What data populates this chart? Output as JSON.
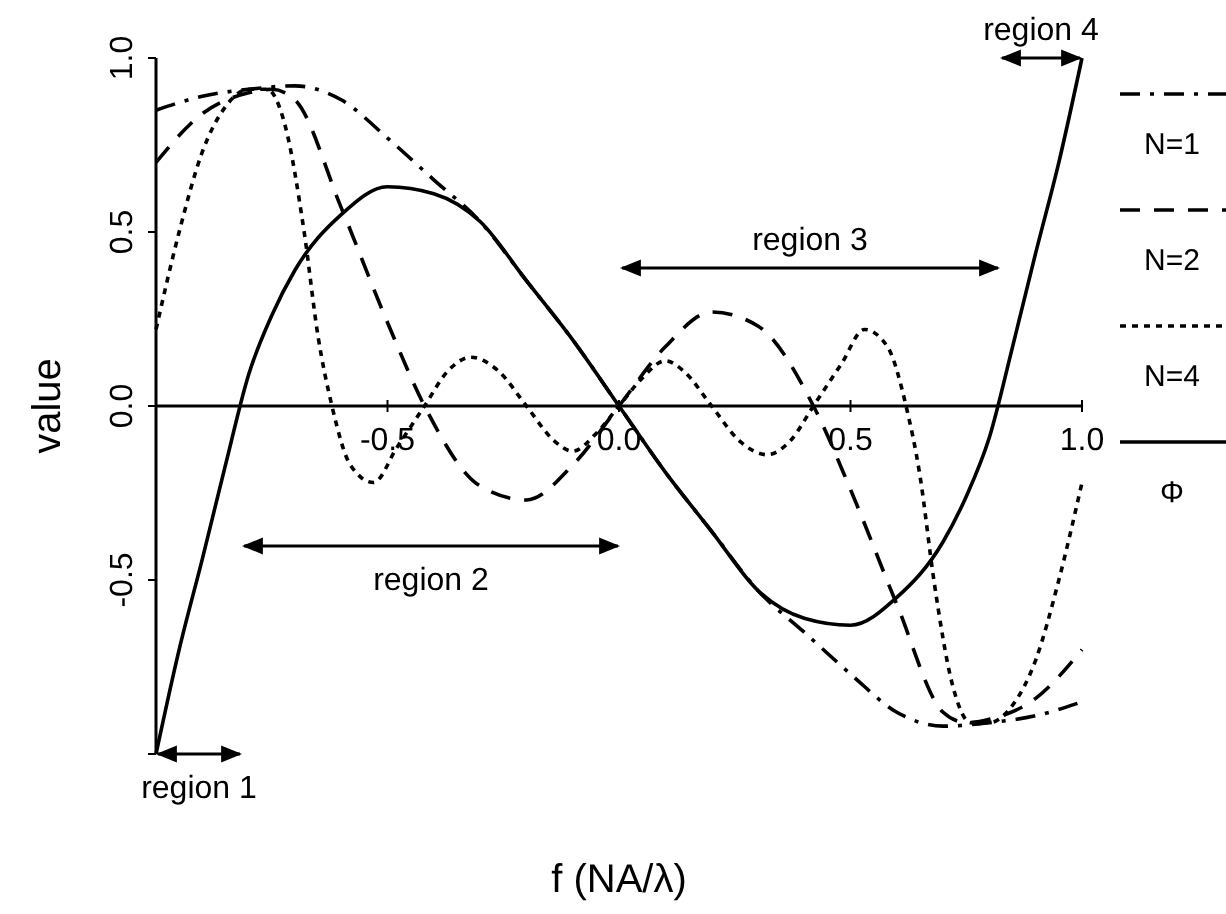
{
  "chart_data": {
    "type": "line",
    "xlabel": "f (NA/λ)",
    "ylabel": "value",
    "xlim": [
      -1,
      1
    ],
    "ylim": [
      -1,
      1
    ],
    "xticks": [
      {
        "value": -1,
        "label": null
      },
      {
        "value": -0.5,
        "label": "-0.5"
      },
      {
        "value": 0,
        "label": "0.0"
      },
      {
        "value": 0.5,
        "label": "0.5"
      },
      {
        "value": 1,
        "label": "1.0"
      }
    ],
    "yticks": [
      {
        "value": -1,
        "label": null
      },
      {
        "value": -0.5,
        "label": "-0.5"
      },
      {
        "value": 0,
        "label": "0.0"
      },
      {
        "value": 0.5,
        "label": "0.5"
      },
      {
        "value": 1,
        "label": "1.0"
      }
    ],
    "legend": "right",
    "grid": false,
    "marker": "none",
    "series": [
      {
        "name": "N=1",
        "color": "#000000",
        "line_style": "dashdot",
        "x": [
          -1,
          -0.9,
          -0.8,
          -0.7,
          -0.6,
          -0.5,
          -0.4,
          -0.3,
          -0.2,
          -0.1,
          0,
          0.1,
          0.2,
          0.3,
          0.4,
          0.5,
          0.6,
          0.7,
          0.8,
          0.9,
          1
        ],
        "values": [
          0.85,
          0.89,
          0.91,
          0.92,
          0.88,
          0.77,
          0.65,
          0.53,
          0.36,
          0.19,
          0,
          -0.19,
          -0.36,
          -0.53,
          -0.65,
          -0.77,
          -0.88,
          -0.92,
          -0.91,
          -0.89,
          -0.85
        ]
      },
      {
        "name": "N=2",
        "color": "#000000",
        "line_style": "dashed",
        "x": [
          -1,
          -0.9,
          -0.8,
          -0.75,
          -0.7,
          -0.6,
          -0.5,
          -0.42,
          -0.3,
          -0.2,
          -0.1,
          0,
          0.1,
          0.2,
          0.3,
          0.42,
          0.5,
          0.6,
          0.7,
          0.75,
          0.8,
          0.9,
          1
        ],
        "values": [
          0.7,
          0.84,
          0.9,
          0.91,
          0.88,
          0.57,
          0.24,
          0,
          -0.23,
          -0.27,
          -0.17,
          0,
          0.17,
          0.27,
          0.23,
          0,
          -0.24,
          -0.57,
          -0.88,
          -0.91,
          -0.9,
          -0.84,
          -0.7
        ]
      },
      {
        "name": "N=4",
        "color": "#000000",
        "line_style": "dotted",
        "x": [
          -1,
          -0.95,
          -0.9,
          -0.85,
          -0.8,
          -0.76,
          -0.72,
          -0.68,
          -0.65,
          -0.62,
          -0.58,
          -0.53,
          -0.48,
          -0.42,
          -0.37,
          -0.32,
          -0.26,
          -0.2,
          -0.14,
          -0.1,
          -0.05,
          0,
          0.05,
          0.1,
          0.14,
          0.2,
          0.26,
          0.32,
          0.37,
          0.42,
          0.48,
          0.53,
          0.58,
          0.62,
          0.65,
          0.68,
          0.72,
          0.76,
          0.8,
          0.85,
          0.9,
          0.95,
          1
        ],
        "values": [
          0.22,
          0.5,
          0.73,
          0.86,
          0.91,
          0.91,
          0.8,
          0.5,
          0.2,
          0,
          -0.17,
          -0.22,
          -0.12,
          0,
          0.1,
          0.14,
          0.1,
          0,
          -0.1,
          -0.13,
          -0.08,
          0,
          0.08,
          0.13,
          0.1,
          0,
          -0.1,
          -0.14,
          -0.1,
          0,
          0.12,
          0.22,
          0.17,
          0,
          -0.2,
          -0.5,
          -0.8,
          -0.91,
          -0.91,
          -0.86,
          -0.73,
          -0.5,
          -0.22
        ]
      },
      {
        "name": "Φ",
        "color": "#000000",
        "line_style": "solid",
        "x": [
          -1,
          -0.95,
          -0.9,
          -0.85,
          -0.8,
          -0.75,
          -0.7,
          -0.6,
          -0.5,
          -0.4,
          -0.3,
          -0.2,
          -0.1,
          0,
          0.1,
          0.2,
          0.3,
          0.4,
          0.5,
          0.6,
          0.7,
          0.75,
          0.8,
          0.85,
          0.9,
          0.95,
          1
        ],
        "values": [
          -1,
          -0.7,
          -0.44,
          -0.17,
          0.09,
          0.26,
          0.39,
          0.55,
          0.63,
          0.61,
          0.53,
          0.36,
          0.19,
          0,
          -0.19,
          -0.36,
          -0.53,
          -0.61,
          -0.63,
          -0.55,
          -0.39,
          -0.26,
          -0.09,
          0.17,
          0.44,
          0.7,
          1
        ]
      }
    ],
    "annotations": [
      "region 1",
      "region 2",
      "region 3",
      "region 4"
    ]
  }
}
